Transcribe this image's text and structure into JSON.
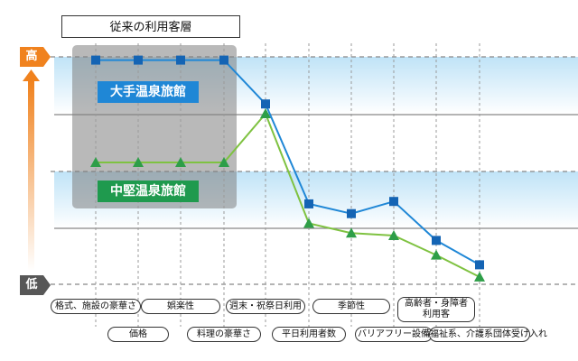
{
  "title": "従来の利用客層",
  "scale": {
    "high": "高",
    "low": "低"
  },
  "colors": {
    "large": "#1f87d6",
    "medium": "#7fc241",
    "mediumLabel": "#1f9a4e",
    "arrow": "#f0821e",
    "highlight": "#808080"
  },
  "chart_data": {
    "type": "line",
    "title": "従来の利用客層",
    "xlabel": "",
    "ylabel": "",
    "categories": [
      "格式、施設の豪華さ",
      "価格",
      "娯楽性",
      "料理の豪華さ",
      "週末・祝祭日利用",
      "平日利用者数",
      "季節性",
      "バリアフリー設備",
      "高齢者・身障者 利用客",
      "福祉系、介護系団体受け入れ"
    ],
    "series": [
      {
        "name": "大手温泉旅館",
        "values": [
          9.2,
          9.2,
          9.2,
          9.2,
          7.4,
          3.3,
          2.9,
          3.4,
          1.8,
          0.8
        ]
      },
      {
        "name": "中堅温泉旅館",
        "values": [
          5.0,
          5.0,
          5.0,
          5.0,
          7.0,
          2.5,
          2.1,
          2.0,
          1.2,
          0.3
        ]
      }
    ],
    "ylim": [
      0,
      10
    ],
    "grid": true,
    "legend": "inline labels"
  }
}
